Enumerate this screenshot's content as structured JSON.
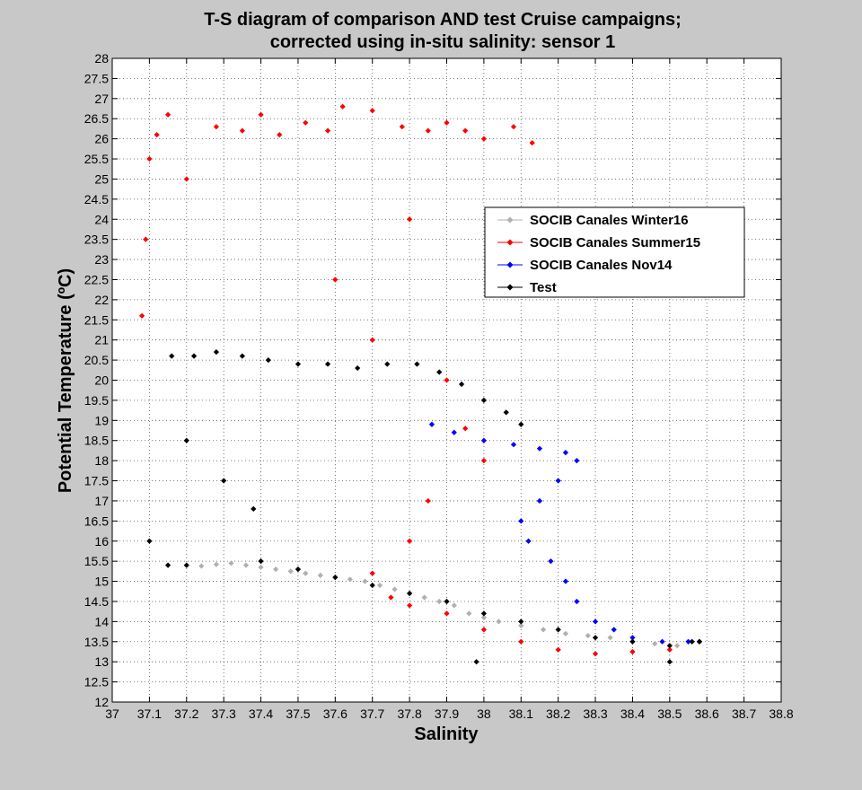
{
  "chart_data": {
    "type": "scatter",
    "title": [
      "T-S diagram of comparison AND test Cruise campaigns;",
      "corrected using in-situ salinity: sensor 1"
    ],
    "xlabel": "Salinity",
    "ylabel": "Potential Temperature (ºC)",
    "xlim": [
      37,
      38.8
    ],
    "ylim": [
      12,
      28
    ],
    "xticks": [
      "37",
      "37.1",
      "37.2",
      "37.3",
      "37.4",
      "37.5",
      "37.6",
      "37.7",
      "37.8",
      "37.9",
      "38",
      "38.1",
      "38.2",
      "38.3",
      "38.4",
      "38.5",
      "38.6",
      "38.7",
      "38.8"
    ],
    "yticks": [
      "12",
      "12.5",
      "13",
      "13.5",
      "14",
      "14.5",
      "15",
      "15.5",
      "16",
      "16.5",
      "17",
      "17.5",
      "18",
      "18.5",
      "19",
      "19.5",
      "20",
      "20.5",
      "21",
      "21.5",
      "22",
      "22.5",
      "23",
      "23.5",
      "24",
      "24.5",
      "25",
      "25.5",
      "26",
      "26.5",
      "27",
      "27.5",
      "28"
    ],
    "grid": true,
    "legend_position": "upper-right",
    "series": [
      {
        "name": "SOCIB Canales Winter16",
        "color": "#b0b0b0",
        "points": [
          [
            37.24,
            15.38
          ],
          [
            37.28,
            15.42
          ],
          [
            37.32,
            15.45
          ],
          [
            37.36,
            15.4
          ],
          [
            37.4,
            15.35
          ],
          [
            37.44,
            15.3
          ],
          [
            37.48,
            15.25
          ],
          [
            37.52,
            15.2
          ],
          [
            37.56,
            15.15
          ],
          [
            37.6,
            15.1
          ],
          [
            37.64,
            15.05
          ],
          [
            37.68,
            15.0
          ],
          [
            37.72,
            14.9
          ],
          [
            37.76,
            14.8
          ],
          [
            37.8,
            14.7
          ],
          [
            37.84,
            14.6
          ],
          [
            37.88,
            14.5
          ],
          [
            37.92,
            14.4
          ],
          [
            37.96,
            14.2
          ],
          [
            38.0,
            14.1
          ],
          [
            38.04,
            14.0
          ],
          [
            38.1,
            13.9
          ],
          [
            38.16,
            13.8
          ],
          [
            38.22,
            13.7
          ],
          [
            38.28,
            13.65
          ],
          [
            38.34,
            13.6
          ],
          [
            38.4,
            13.5
          ],
          [
            38.46,
            13.45
          ],
          [
            38.52,
            13.4
          ],
          [
            38.58,
            13.5
          ]
        ]
      },
      {
        "name": "SOCIB Canales Summer15",
        "color": "#ff0000",
        "points": [
          [
            37.08,
            21.6
          ],
          [
            37.09,
            23.5
          ],
          [
            37.1,
            25.5
          ],
          [
            37.12,
            26.1
          ],
          [
            37.15,
            26.6
          ],
          [
            37.2,
            25.0
          ],
          [
            37.28,
            26.3
          ],
          [
            37.35,
            26.2
          ],
          [
            37.4,
            26.6
          ],
          [
            37.45,
            26.1
          ],
          [
            37.52,
            26.4
          ],
          [
            37.58,
            26.2
          ],
          [
            37.62,
            26.8
          ],
          [
            37.7,
            26.7
          ],
          [
            37.78,
            26.3
          ],
          [
            37.85,
            26.2
          ],
          [
            37.9,
            26.4
          ],
          [
            37.95,
            26.2
          ],
          [
            38.0,
            26.0
          ],
          [
            38.08,
            26.3
          ],
          [
            38.13,
            25.9
          ],
          [
            37.8,
            24.0
          ],
          [
            37.6,
            22.5
          ],
          [
            37.7,
            21.0
          ],
          [
            37.9,
            20.0
          ],
          [
            37.95,
            18.8
          ],
          [
            38.0,
            18.0
          ],
          [
            37.85,
            17.0
          ],
          [
            37.8,
            16.0
          ],
          [
            37.7,
            15.2
          ],
          [
            37.75,
            14.6
          ],
          [
            37.8,
            14.4
          ],
          [
            37.9,
            14.2
          ],
          [
            38.0,
            13.8
          ],
          [
            38.1,
            13.5
          ],
          [
            38.2,
            13.3
          ],
          [
            38.3,
            13.2
          ],
          [
            38.4,
            13.25
          ],
          [
            38.5,
            13.3
          ]
        ]
      },
      {
        "name": "SOCIB Canales Nov14",
        "color": "#0000ff",
        "points": [
          [
            37.86,
            18.9
          ],
          [
            37.92,
            18.7
          ],
          [
            38.0,
            18.5
          ],
          [
            38.08,
            18.4
          ],
          [
            38.15,
            18.3
          ],
          [
            38.22,
            18.2
          ],
          [
            38.25,
            18.0
          ],
          [
            38.2,
            17.5
          ],
          [
            38.15,
            17.0
          ],
          [
            38.1,
            16.5
          ],
          [
            38.12,
            16.0
          ],
          [
            38.18,
            15.5
          ],
          [
            38.22,
            15.0
          ],
          [
            38.25,
            14.5
          ],
          [
            38.3,
            14.0
          ],
          [
            38.35,
            13.8
          ],
          [
            38.4,
            13.6
          ],
          [
            38.48,
            13.5
          ],
          [
            38.55,
            13.5
          ],
          [
            38.58,
            13.5
          ]
        ]
      },
      {
        "name": "Test",
        "color": "#000000",
        "points": [
          [
            37.16,
            20.6
          ],
          [
            37.22,
            20.6
          ],
          [
            37.28,
            20.7
          ],
          [
            37.35,
            20.6
          ],
          [
            37.42,
            20.5
          ],
          [
            37.5,
            20.4
          ],
          [
            37.58,
            20.4
          ],
          [
            37.66,
            20.3
          ],
          [
            37.74,
            20.4
          ],
          [
            37.82,
            20.4
          ],
          [
            37.88,
            20.2
          ],
          [
            37.94,
            19.9
          ],
          [
            38.0,
            19.5
          ],
          [
            38.06,
            19.2
          ],
          [
            38.1,
            18.9
          ],
          [
            37.2,
            18.5
          ],
          [
            37.3,
            17.5
          ],
          [
            37.38,
            16.8
          ],
          [
            37.1,
            16.0
          ],
          [
            37.15,
            15.4
          ],
          [
            37.2,
            15.4
          ],
          [
            37.4,
            15.5
          ],
          [
            37.5,
            15.3
          ],
          [
            37.6,
            15.1
          ],
          [
            37.7,
            14.9
          ],
          [
            37.8,
            14.7
          ],
          [
            37.9,
            14.5
          ],
          [
            38.0,
            14.2
          ],
          [
            38.1,
            14.0
          ],
          [
            38.2,
            13.8
          ],
          [
            38.3,
            13.6
          ],
          [
            38.4,
            13.5
          ],
          [
            38.5,
            13.4
          ],
          [
            38.56,
            13.5
          ],
          [
            38.58,
            13.5
          ],
          [
            38.5,
            13.0
          ],
          [
            37.98,
            13.0
          ]
        ]
      }
    ]
  }
}
